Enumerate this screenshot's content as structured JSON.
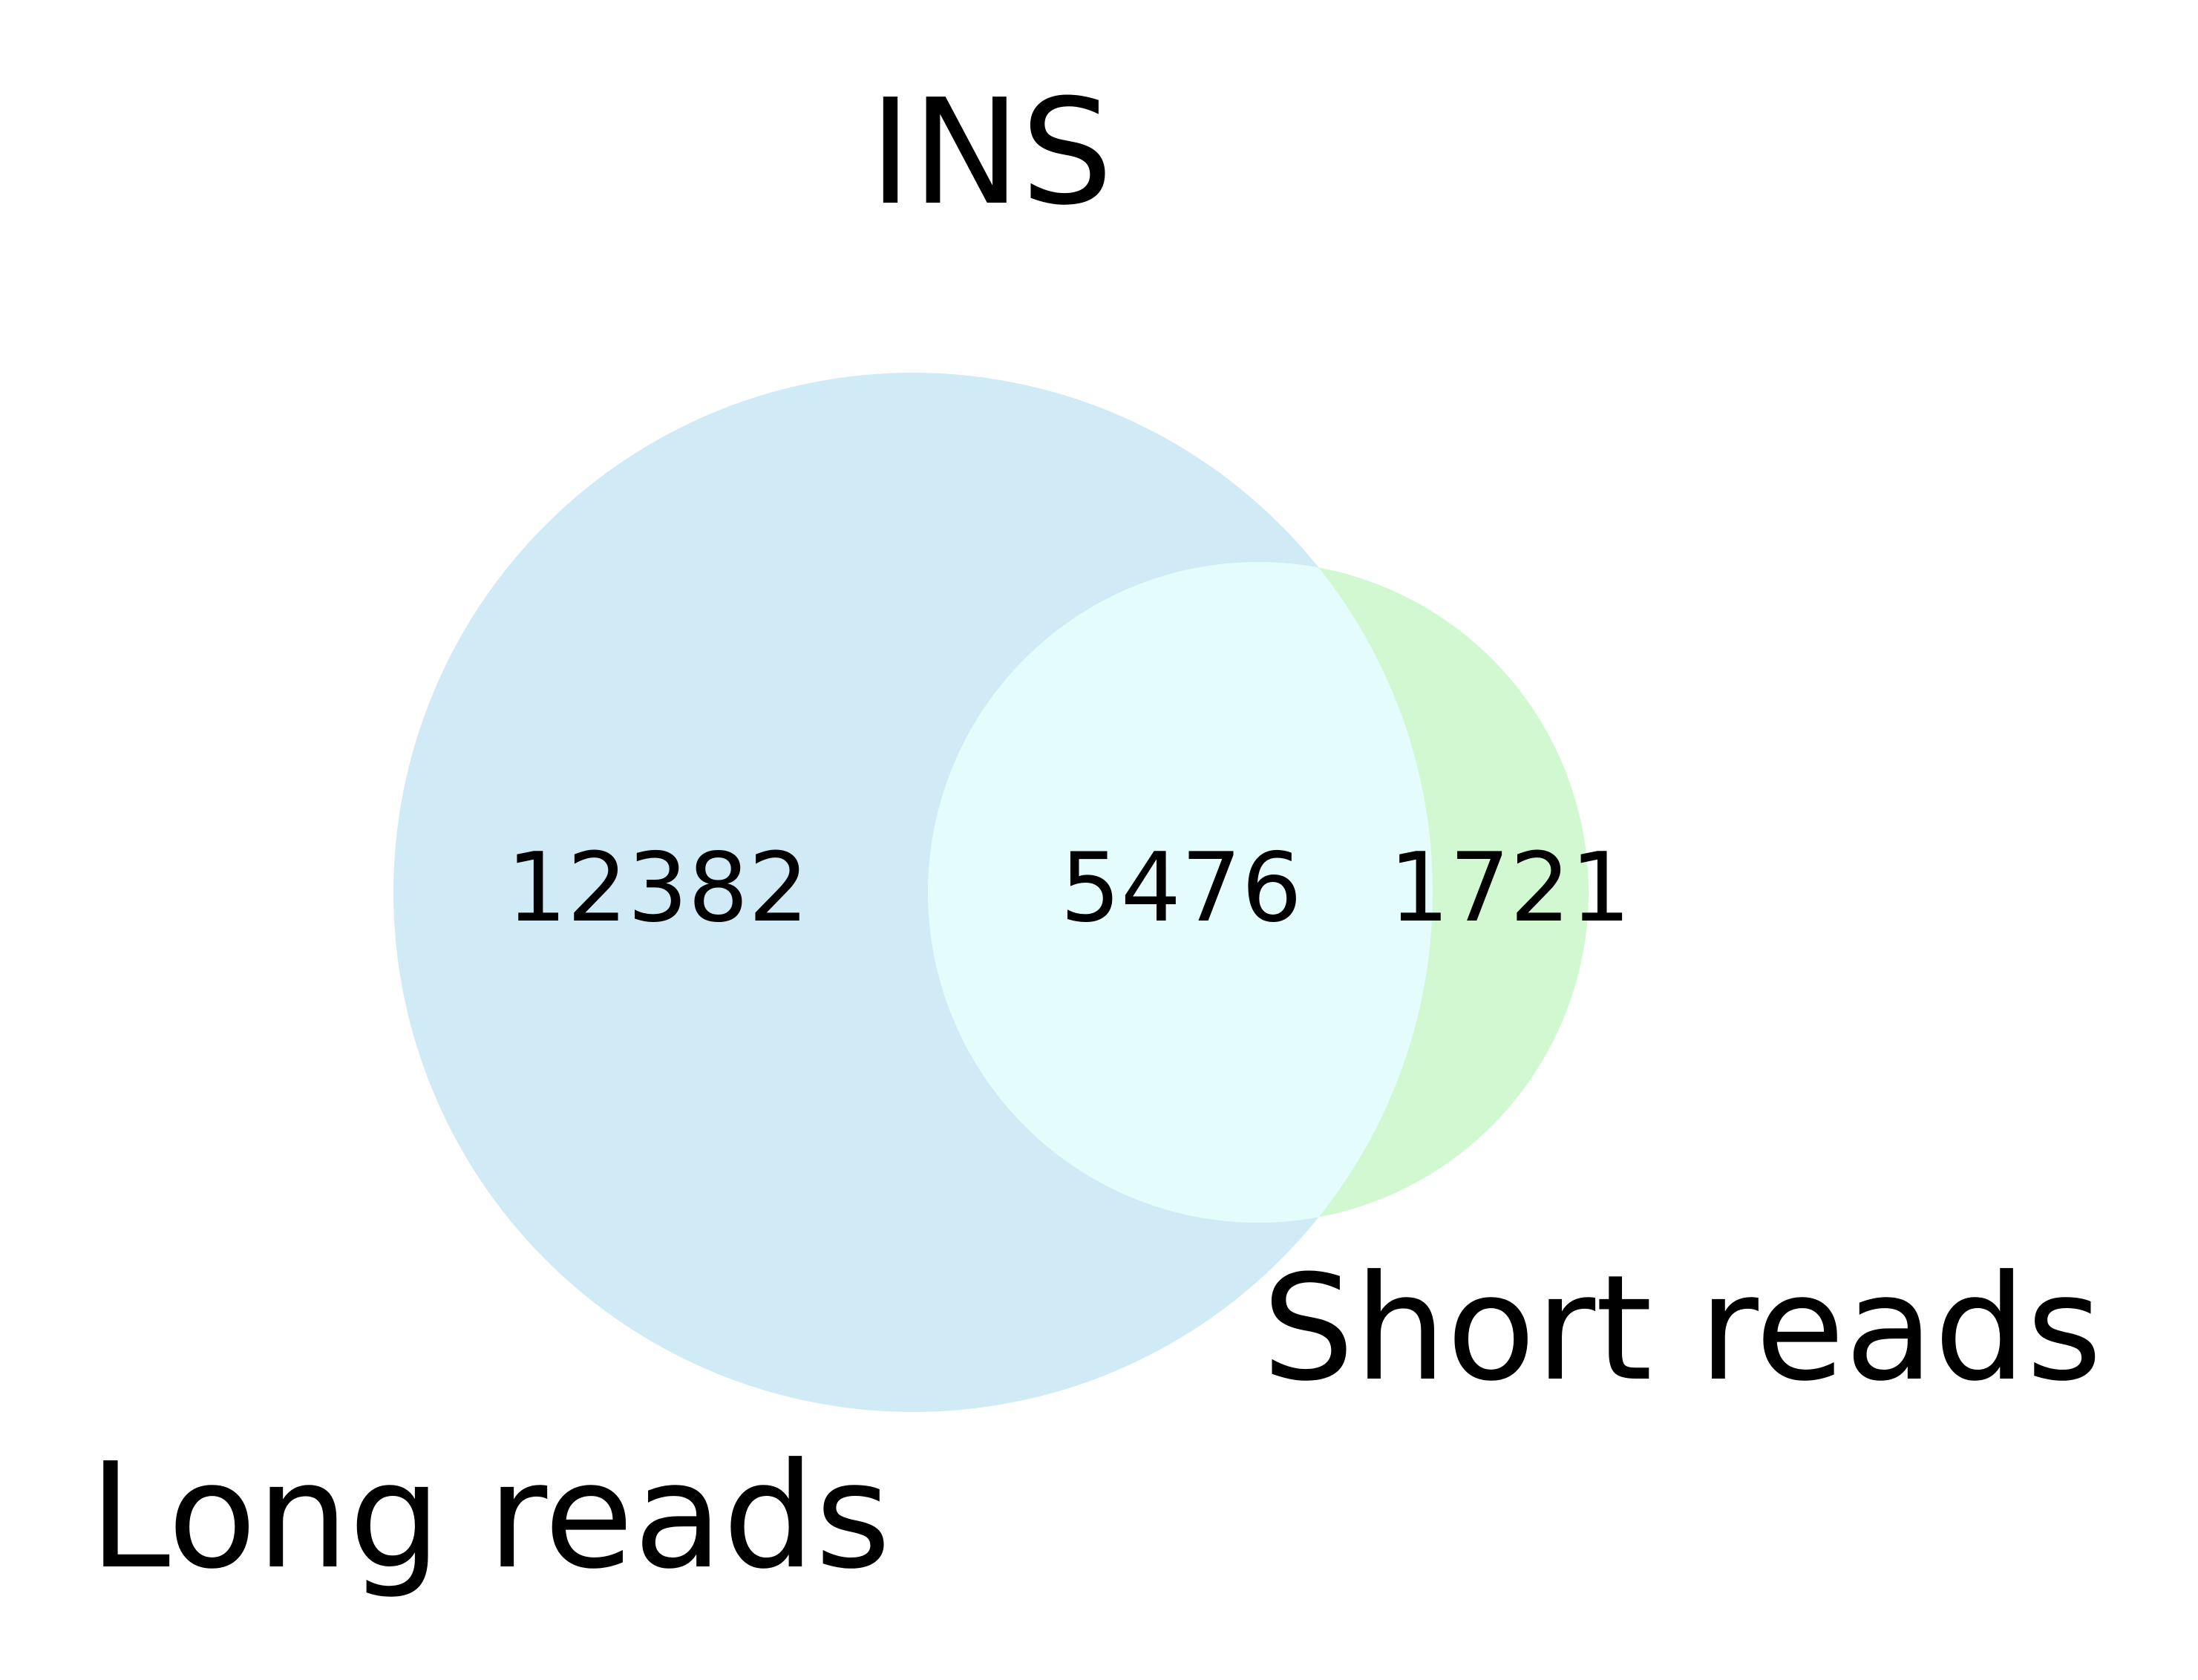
{
  "title": "INS",
  "sets": [
    {
      "name": "Long reads",
      "only_count": "12382",
      "color": "#d0eaf6"
    },
    {
      "name": "Short reads",
      "only_count": "1721",
      "color": "#d2f8d2"
    }
  ],
  "overlap": {
    "count": "5476",
    "color": "#e4fdfc"
  }
}
